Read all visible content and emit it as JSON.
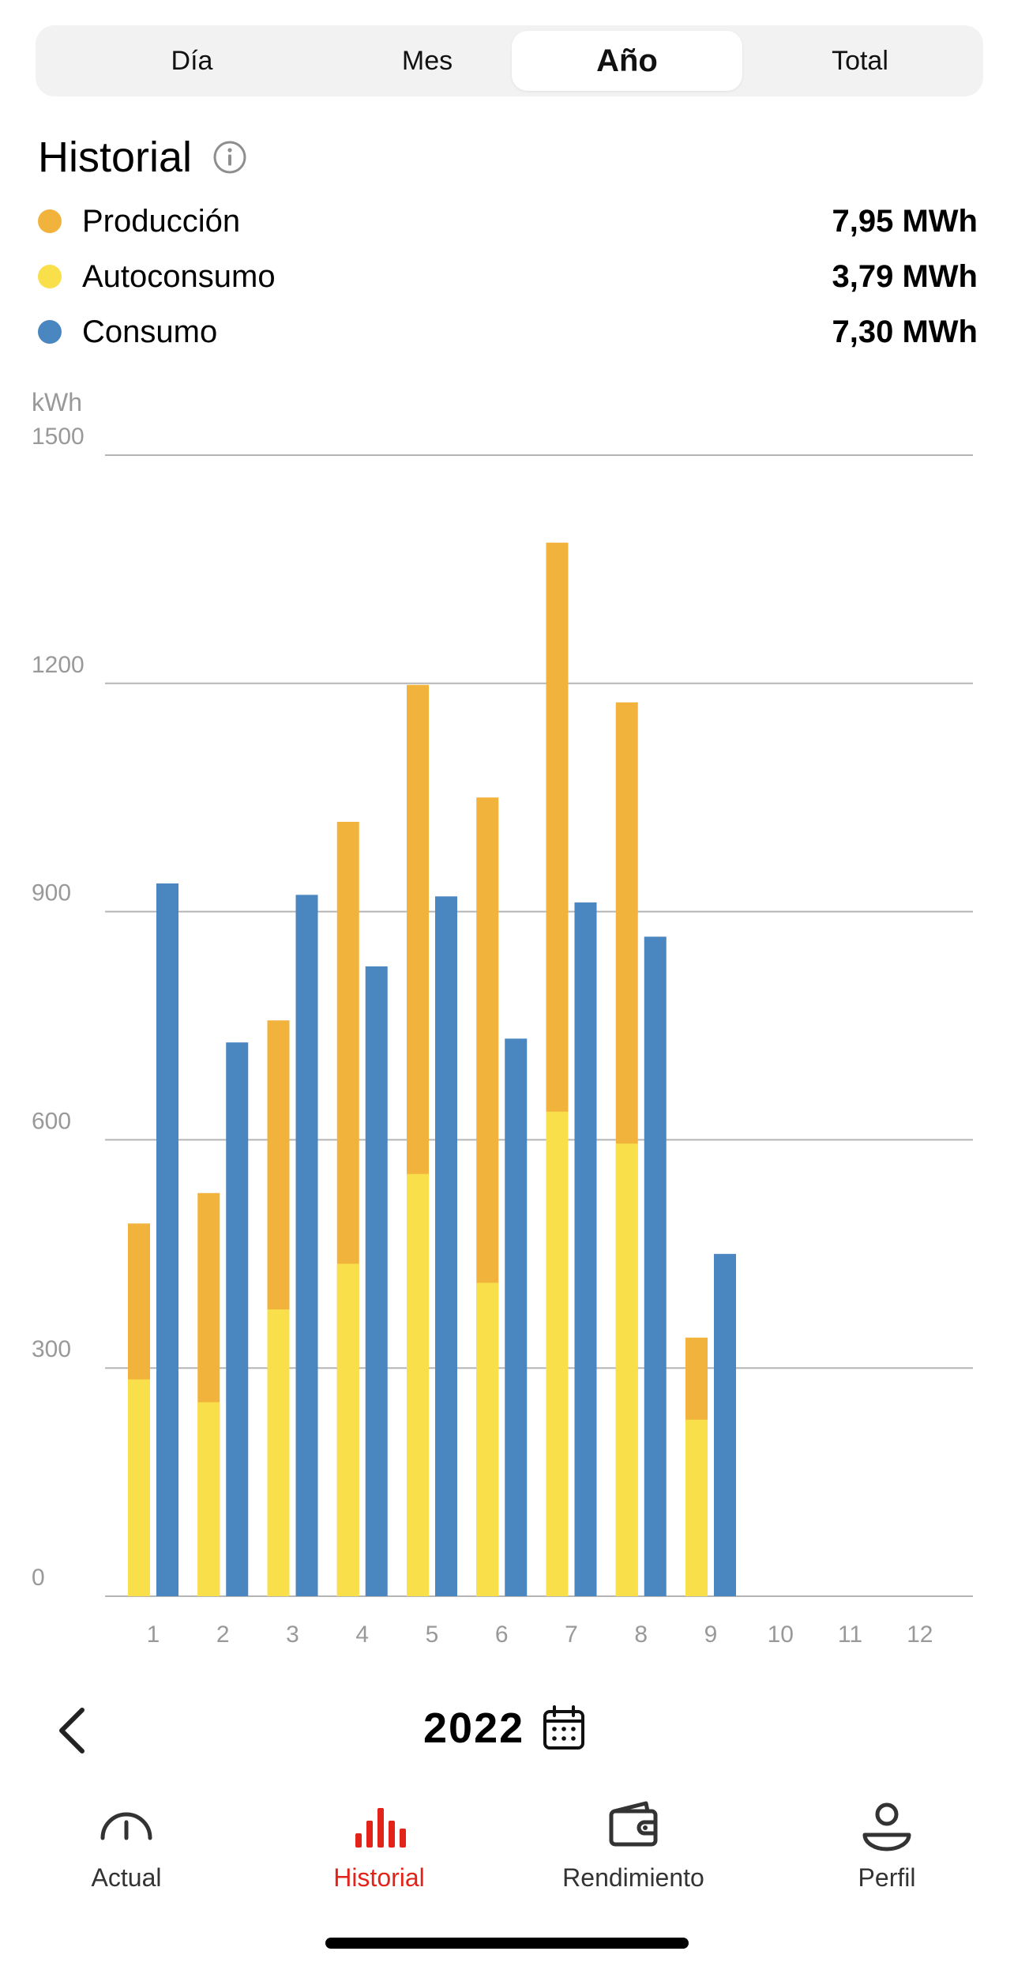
{
  "tabs": [
    {
      "label": "Día",
      "active": false
    },
    {
      "label": "Mes",
      "active": false
    },
    {
      "label": "Año",
      "active": true
    },
    {
      "label": "Total",
      "active": false
    }
  ],
  "section_title": "Historial",
  "legend": [
    {
      "label": "Producción",
      "value": "7,95 MWh",
      "color": "#f2b33d"
    },
    {
      "label": "Autoconsumo",
      "value": "3,79 MWh",
      "color": "#f9e04b"
    },
    {
      "label": "Consumo",
      "value": "7,30 MWh",
      "color": "#4a86c0"
    }
  ],
  "chart_data": {
    "type": "bar",
    "unit_label": "kWh",
    "ylim": [
      0,
      1500
    ],
    "yticks": [
      "0",
      "300",
      "600",
      "900",
      "1200",
      "1500"
    ],
    "categories": [
      "1",
      "2",
      "3",
      "4",
      "5",
      "6",
      "7",
      "8",
      "9",
      "10",
      "11",
      "12"
    ],
    "grid": true,
    "series": [
      {
        "name": "Producción",
        "color": "#f2b33d",
        "values": [
          490,
          530,
          757,
          1018,
          1198,
          1050,
          1385,
          1175,
          340,
          null,
          null,
          null
        ]
      },
      {
        "name": "Autoconsumo",
        "color": "#f9e04b",
        "values": [
          285,
          255,
          377,
          437,
          555,
          412,
          637,
          595,
          232,
          null,
          null,
          null
        ]
      },
      {
        "name": "Consumo",
        "color": "#4a86c0",
        "values": [
          937,
          728,
          922,
          828,
          920,
          733,
          912,
          867,
          450,
          null,
          null,
          null
        ]
      }
    ]
  },
  "year_nav": {
    "year": "2022"
  },
  "bottom_nav": [
    {
      "label": "Actual",
      "icon": "gauge-icon",
      "active": false
    },
    {
      "label": "Historial",
      "icon": "bar-chart-icon",
      "active": true
    },
    {
      "label": "Rendimiento",
      "icon": "wallet-icon",
      "active": false
    },
    {
      "label": "Perfil",
      "icon": "person-icon",
      "active": false
    }
  ],
  "colors": {
    "accent_active": "#e2231a",
    "gridline": "#b5b5b5",
    "axis_text": "#999999"
  }
}
